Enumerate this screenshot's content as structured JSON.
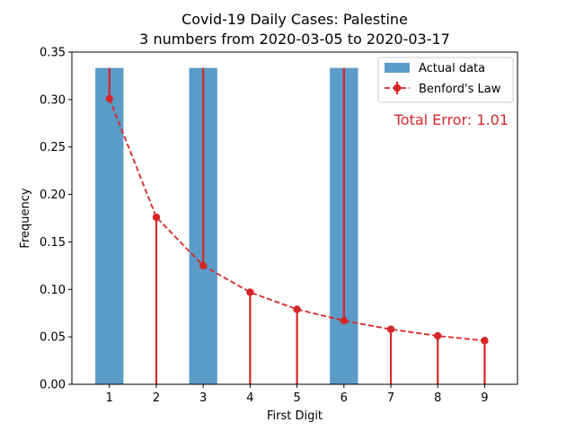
{
  "chart_data": {
    "type": "bar",
    "title": "Covid-19 Daily Cases: Palestine",
    "subtitle": "3 numbers from 2020-03-05 to 2020-03-17",
    "xlabel": "First Digit",
    "ylabel": "Frequency",
    "categories": [
      1,
      2,
      3,
      4,
      5,
      6,
      7,
      8,
      9
    ],
    "xlim": [
      0.2,
      9.7
    ],
    "ylim": [
      0,
      0.35
    ],
    "yticks": [
      0.0,
      0.05,
      0.1,
      0.15,
      0.2,
      0.25,
      0.3,
      0.35
    ],
    "ytick_labels": [
      "0.00",
      "0.05",
      "0.10",
      "0.15",
      "0.20",
      "0.25",
      "0.30",
      "0.35"
    ],
    "grid": false,
    "legend_position": "top-right",
    "series": [
      {
        "name": "Actual data",
        "kind": "bar",
        "color": "#5b9bc8",
        "values": [
          0.3333,
          0,
          0.3333,
          0,
          0,
          0.3333,
          0,
          0,
          0
        ]
      },
      {
        "name": "Benford's Law",
        "kind": "line-errorbar",
        "color": "#d62728",
        "values": [
          0.301,
          0.176,
          0.125,
          0.097,
          0.079,
          0.067,
          0.058,
          0.051,
          0.046
        ],
        "error_to": [
          0.3333,
          0,
          0.3333,
          0,
          0,
          0.3333,
          0,
          0,
          0
        ]
      }
    ],
    "annotation": {
      "text": "Total Error: 1.01",
      "color": "#d62728"
    }
  }
}
